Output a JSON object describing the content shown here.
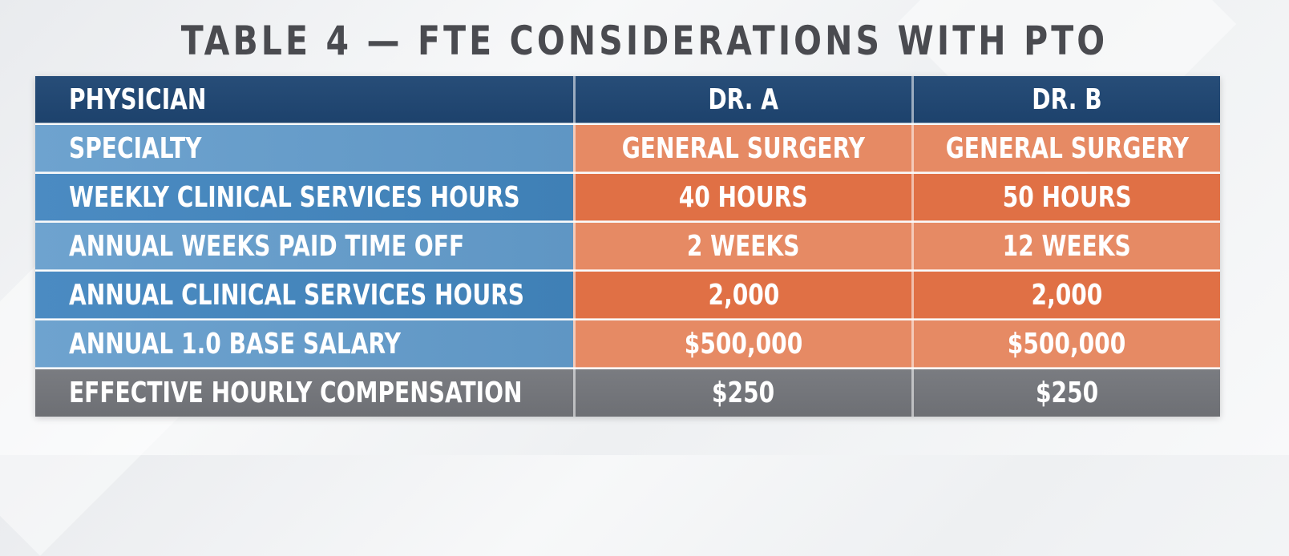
{
  "title": "TABLE 4 — FTE CONSIDERATIONS WITH PTO",
  "table": {
    "header": {
      "label": "PHYSICIAN",
      "col1": "DR. A",
      "col2": "DR. B"
    },
    "rows": [
      {
        "label": "SPECIALTY",
        "col1": "GENERAL SURGERY",
        "col2": "GENERAL SURGERY"
      },
      {
        "label": "WEEKLY CLINICAL SERVICES HOURS",
        "col1": "40 HOURS",
        "col2": "50 HOURS"
      },
      {
        "label": "ANNUAL WEEKS PAID TIME OFF",
        "col1": "2 WEEKS",
        "col2": "12 WEEKS"
      },
      {
        "label": "ANNUAL CLINICAL SERVICES HOURS",
        "col1": "2,000",
        "col2": "2,000"
      },
      {
        "label": "ANNUAL 1.0 BASE SALARY",
        "col1": "$500,000",
        "col2": "$500,000"
      }
    ],
    "footer": {
      "label": "EFFECTIVE HOURLY COMPENSATION",
      "col1": "$250",
      "col2": "$250"
    }
  },
  "colors": {
    "header": "#1f4570",
    "label_light": "#6399c6",
    "label_dark": "#4384ba",
    "value_light": "#e68a64",
    "value_dark": "#e07045",
    "footer": "#717378",
    "title": "#4a4b50"
  }
}
